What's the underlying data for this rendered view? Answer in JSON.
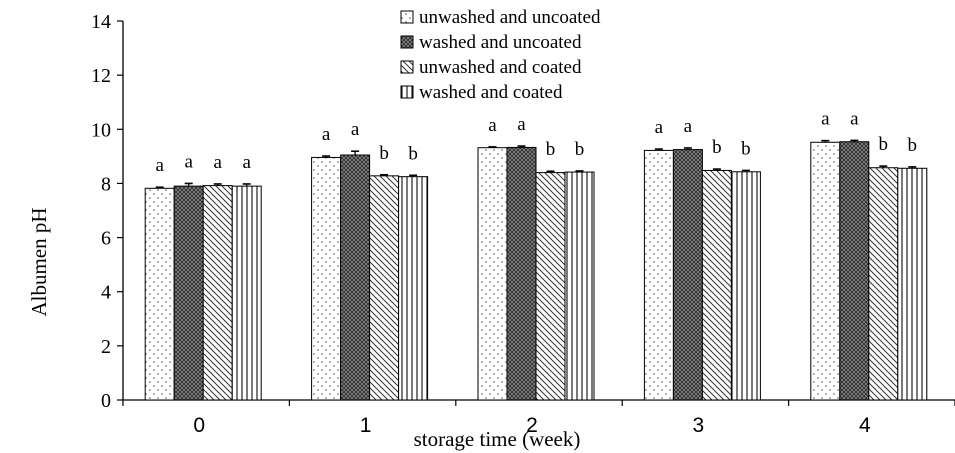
{
  "chart_data": {
    "type": "bar",
    "xlabel": "storage time (week)",
    "ylabel": "Albumen pH",
    "ylim": [
      0,
      14
    ],
    "yticks": [
      "0",
      "2",
      "4",
      "6",
      "8",
      "10",
      "12",
      "14"
    ],
    "categories": [
      "0",
      "1",
      "2",
      "3",
      "4"
    ],
    "grid": false,
    "legend_position": "top-center",
    "series": [
      {
        "name": "unwashed and uncoated",
        "pattern": "dots",
        "values": [
          7.82,
          8.96,
          9.32,
          9.22,
          9.52
        ],
        "errors": [
          0.04,
          0.05,
          0.03,
          0.05,
          0.06
        ],
        "labels": [
          "a",
          "a",
          "a",
          "a",
          "a"
        ]
      },
      {
        "name": "washed and uncoated",
        "pattern": "crosshatch",
        "values": [
          7.9,
          9.05,
          9.33,
          9.25,
          9.54
        ],
        "errors": [
          0.1,
          0.14,
          0.05,
          0.06,
          0.05
        ],
        "labels": [
          "a",
          "a",
          "a",
          "a",
          "a"
        ]
      },
      {
        "name": "unwashed and coated",
        "pattern": "diagonal",
        "values": [
          7.92,
          8.28,
          8.4,
          8.48,
          8.58
        ],
        "errors": [
          0.06,
          0.04,
          0.05,
          0.05,
          0.06
        ],
        "labels": [
          "a",
          "b",
          "b",
          "b",
          "b"
        ]
      },
      {
        "name": "washed and coated",
        "pattern": "vertical",
        "values": [
          7.9,
          8.25,
          8.42,
          8.43,
          8.56
        ],
        "errors": [
          0.08,
          0.05,
          0.04,
          0.05,
          0.05
        ],
        "labels": [
          "a",
          "b",
          "b",
          "b",
          "b"
        ]
      }
    ]
  }
}
